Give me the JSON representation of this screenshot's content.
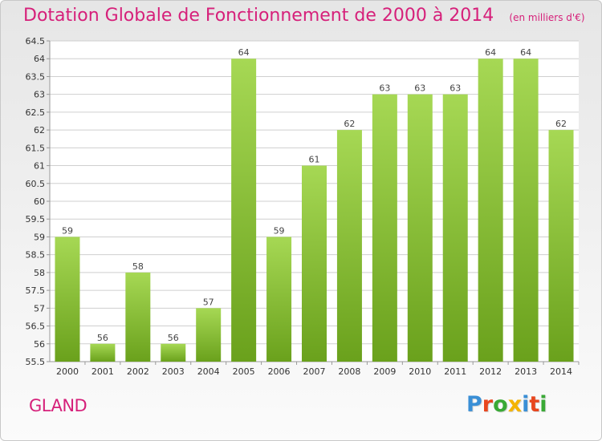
{
  "header": {
    "title": "Dotation Globale de Fonctionnement de 2000 à 2014",
    "unit": "(en milliers d'€)"
  },
  "footer": {
    "commune": "GLAND",
    "brand": "Proxiti",
    "brand_colors": [
      "#3a8fd6",
      "#e8461e",
      "#39a935",
      "#f4b400",
      "#3a8fd6",
      "#e8461e",
      "#39a935"
    ]
  },
  "colors": {
    "title": "#d6207a",
    "bar_light": "#a6d854",
    "bar_dark": "#6aa11c",
    "grid": "#cfcfcf"
  },
  "chart_data": {
    "type": "bar",
    "title": "Dotation Globale de Fonctionnement de 2000 à 2014",
    "xlabel": "",
    "ylabel": "",
    "categories": [
      "2000",
      "2001",
      "2002",
      "2003",
      "2004",
      "2005",
      "2006",
      "2007",
      "2008",
      "2009",
      "2010",
      "2011",
      "2012",
      "2013",
      "2014"
    ],
    "values": [
      59,
      56,
      58,
      56,
      57,
      64,
      59,
      61,
      62,
      63,
      63,
      63,
      64,
      64,
      62
    ],
    "ylim": [
      55.5,
      64.5
    ],
    "ytick_step": 0.5,
    "yticks": [
      "55.5",
      "56",
      "56.5",
      "57",
      "57.5",
      "58",
      "58.5",
      "59",
      "59.5",
      "60",
      "60.5",
      "61",
      "61.5",
      "62",
      "62.5",
      "63",
      "63.5",
      "64",
      "64.5"
    ],
    "grid": true
  }
}
